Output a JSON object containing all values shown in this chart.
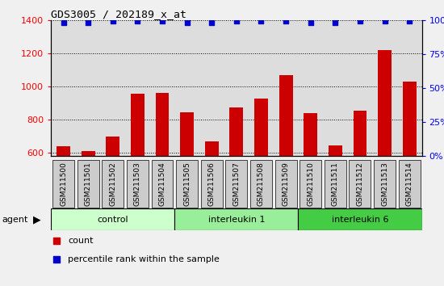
{
  "title": "GDS3005 / 202189_x_at",
  "samples": [
    "GSM211500",
    "GSM211501",
    "GSM211502",
    "GSM211503",
    "GSM211504",
    "GSM211505",
    "GSM211506",
    "GSM211507",
    "GSM211508",
    "GSM211509",
    "GSM211510",
    "GSM211511",
    "GSM211512",
    "GSM211513",
    "GSM211514"
  ],
  "counts": [
    640,
    610,
    695,
    955,
    960,
    845,
    665,
    870,
    925,
    1065,
    840,
    645,
    855,
    1220,
    1030
  ],
  "percentiles": [
    98,
    98,
    99,
    99,
    99,
    98,
    98,
    99,
    99,
    99,
    98,
    98,
    99,
    99,
    99
  ],
  "bar_color": "#cc0000",
  "dot_color": "#0000cc",
  "ylim_left": [
    580,
    1400
  ],
  "ylim_right": [
    0,
    100
  ],
  "yticks_left": [
    600,
    800,
    1000,
    1200,
    1400
  ],
  "yticks_right": [
    0,
    25,
    50,
    75,
    100
  ],
  "groups": [
    {
      "label": "control",
      "start": 0,
      "end": 5,
      "color": "#ccffcc"
    },
    {
      "label": "interleukin 1",
      "start": 5,
      "end": 10,
      "color": "#99ee99"
    },
    {
      "label": "interleukin 6",
      "start": 10,
      "end": 15,
      "color": "#44cc44"
    }
  ],
  "group_label": "agent",
  "legend_count_label": "count",
  "legend_pct_label": "percentile rank within the sample",
  "fig_bg": "#f0f0f0",
  "plot_bg": "#dddddd",
  "xtick_box_color": "#cccccc"
}
